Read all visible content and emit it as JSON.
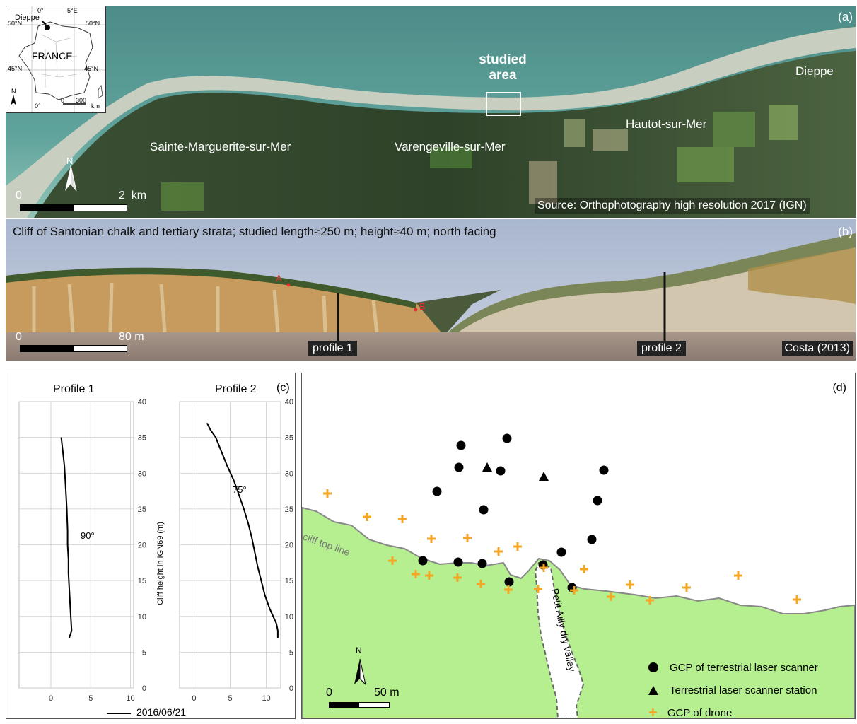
{
  "panel_a": {
    "label": "(a)",
    "places": {
      "sainte_marguerite": "Sainte-Marguerite-sur-Mer",
      "varengeville": "Varengeville-sur-Mer",
      "hautot": "Hautot-sur-Mer",
      "dieppe": "Dieppe"
    },
    "studied_area_line1": "studied",
    "studied_area_line2": "area",
    "scale_zero": "0",
    "scale_end": "2  km",
    "north": "N",
    "source": "Source: Orthophotography high resolution 2017 (IGN)",
    "inset": {
      "dieppe": "Dieppe",
      "france": "FRANCE",
      "lon_0": "0°",
      "lon_5e": "5°E",
      "lat_50_left": "50°N",
      "lat_50_right": "50°N",
      "lat_45_left": "45°N",
      "lat_45_right": "45°N",
      "bottom_0": "0°",
      "scale_0": "0",
      "scale_300": "300",
      "scale_km": "km",
      "north": "N"
    }
  },
  "panel_b": {
    "label": "(b)",
    "caption": "Cliff of Santonian chalk and tertiary strata; studied length≈250 m; height≈40 m; north facing",
    "point_a": "A",
    "point_b": "B",
    "scale_zero": "0",
    "scale_end": "80 m",
    "profile1": "profile 1",
    "profile2": "profile 2",
    "credit": "Costa (2013)"
  },
  "panel_c": {
    "label": "(c)",
    "title1": "Profile 1",
    "title2": "Profile 2",
    "angle1": "90°",
    "angle2": "75°",
    "ylabel": "Cliff height in IGN69 (m)",
    "legend": "2016/06/21",
    "y_ticks": [
      "0",
      "5",
      "10",
      "15",
      "20",
      "25",
      "30",
      "35",
      "40"
    ],
    "x_ticks": [
      "0",
      "5",
      "10"
    ]
  },
  "panel_d": {
    "label": "(d)",
    "cliff_top_line": "cliff top line",
    "valley": "Petit Ailly dry valley",
    "north": "N",
    "scale_zero": "0",
    "scale_end": "50 m",
    "legend": {
      "tls_gcp": "GCP of terrestrial laser scanner",
      "tls_station": "Terrestrial laser scanner station",
      "drone_gcp": "GCP of drone"
    },
    "colors": {
      "land": "#b5ef8f",
      "drone": "#f5a623",
      "tls": "#000000",
      "valley": "#ffffff"
    }
  },
  "chart_data": {
    "type": "line",
    "ylabel": "Cliff height in IGN69 (m)",
    "ylim": [
      0,
      40
    ],
    "legend_position": "bottom",
    "series": [
      {
        "panel": "Profile 1",
        "xlim": [
          0,
          10
        ],
        "points": [
          [
            1.3,
            35
          ],
          [
            1.5,
            33
          ],
          [
            1.7,
            31
          ],
          [
            1.8,
            29
          ],
          [
            1.9,
            27
          ],
          [
            2.0,
            25
          ],
          [
            2.1,
            22
          ],
          [
            2.1,
            20
          ],
          [
            2.2,
            18
          ],
          [
            2.2,
            16
          ],
          [
            2.3,
            14
          ],
          [
            2.4,
            12
          ],
          [
            2.5,
            10
          ],
          [
            2.6,
            8
          ],
          [
            2.3,
            7
          ]
        ]
      },
      {
        "panel": "Profile 2",
        "xlim": [
          0,
          12
        ],
        "points": [
          [
            1.8,
            37
          ],
          [
            2.3,
            36
          ],
          [
            3.0,
            35
          ],
          [
            3.8,
            33
          ],
          [
            4.6,
            31
          ],
          [
            5.5,
            29
          ],
          [
            6.2,
            27
          ],
          [
            6.9,
            25
          ],
          [
            7.5,
            23
          ],
          [
            8.0,
            21
          ],
          [
            8.4,
            19
          ],
          [
            8.8,
            17
          ],
          [
            9.3,
            15
          ],
          [
            9.8,
            13
          ],
          [
            10.5,
            11
          ],
          [
            11.4,
            9
          ],
          [
            11.6,
            8
          ],
          [
            11.6,
            7
          ]
        ]
      }
    ]
  }
}
